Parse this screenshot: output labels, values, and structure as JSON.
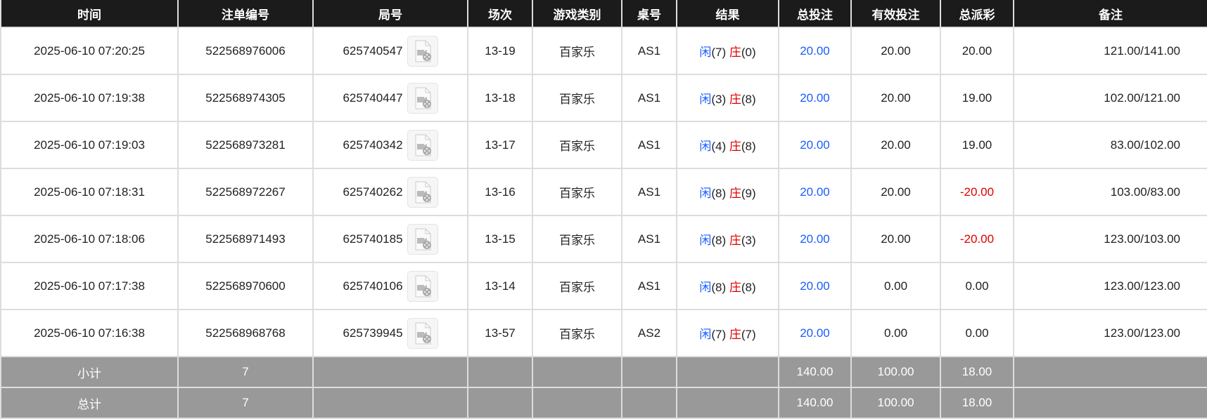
{
  "headers": [
    "时间",
    "注单编号",
    "局号",
    "场次",
    "游戏类别",
    "桌号",
    "结果",
    "总投注",
    "有效投注",
    "总派彩",
    "备注"
  ],
  "rows": [
    {
      "time": "2025-06-10 07:20:25",
      "bet_id": "522568976006",
      "round": "625740547",
      "shoe": "13-19",
      "game": "百家乐",
      "table": "AS1",
      "player": "闲",
      "player_pts": "(7)",
      "banker": "庄",
      "banker_pts": "(0)",
      "total_bet": "20.00",
      "valid_bet": "20.00",
      "payout": "20.00",
      "payout_negative": false,
      "remark": "121.00/141.00"
    },
    {
      "time": "2025-06-10 07:19:38",
      "bet_id": "522568974305",
      "round": "625740447",
      "shoe": "13-18",
      "game": "百家乐",
      "table": "AS1",
      "player": "闲",
      "player_pts": "(3)",
      "banker": "庄",
      "banker_pts": "(8)",
      "total_bet": "20.00",
      "valid_bet": "20.00",
      "payout": "19.00",
      "payout_negative": false,
      "remark": "102.00/121.00"
    },
    {
      "time": "2025-06-10 07:19:03",
      "bet_id": "522568973281",
      "round": "625740342",
      "shoe": "13-17",
      "game": "百家乐",
      "table": "AS1",
      "player": "闲",
      "player_pts": "(4)",
      "banker": "庄",
      "banker_pts": "(8)",
      "total_bet": "20.00",
      "valid_bet": "20.00",
      "payout": "19.00",
      "payout_negative": false,
      "remark": "83.00/102.00"
    },
    {
      "time": "2025-06-10 07:18:31",
      "bet_id": "522568972267",
      "round": "625740262",
      "shoe": "13-16",
      "game": "百家乐",
      "table": "AS1",
      "player": "闲",
      "player_pts": "(8)",
      "banker": "庄",
      "banker_pts": "(9)",
      "total_bet": "20.00",
      "valid_bet": "20.00",
      "payout": "-20.00",
      "payout_negative": true,
      "remark": "103.00/83.00"
    },
    {
      "time": "2025-06-10 07:18:06",
      "bet_id": "522568971493",
      "round": "625740185",
      "shoe": "13-15",
      "game": "百家乐",
      "table": "AS1",
      "player": "闲",
      "player_pts": "(8)",
      "banker": "庄",
      "banker_pts": "(3)",
      "total_bet": "20.00",
      "valid_bet": "20.00",
      "payout": "-20.00",
      "payout_negative": true,
      "remark": "123.00/103.00"
    },
    {
      "time": "2025-06-10 07:17:38",
      "bet_id": "522568970600",
      "round": "625740106",
      "shoe": "13-14",
      "game": "百家乐",
      "table": "AS1",
      "player": "闲",
      "player_pts": "(8)",
      "banker": "庄",
      "banker_pts": "(8)",
      "total_bet": "20.00",
      "valid_bet": "0.00",
      "payout": "0.00",
      "payout_negative": false,
      "remark": "123.00/123.00"
    },
    {
      "time": "2025-06-10 07:16:38",
      "bet_id": "522568968768",
      "round": "625739945",
      "shoe": "13-57",
      "game": "百家乐",
      "table": "AS2",
      "player": "闲",
      "player_pts": "(7)",
      "banker": "庄",
      "banker_pts": "(7)",
      "total_bet": "20.00",
      "valid_bet": "0.00",
      "payout": "0.00",
      "payout_negative": false,
      "remark": "123.00/123.00"
    }
  ],
  "footer": [
    {
      "label": "小计",
      "count": "7",
      "total_bet": "140.00",
      "valid_bet": "100.00",
      "payout": "18.00"
    },
    {
      "label": "总计",
      "count": "7",
      "total_bet": "140.00",
      "valid_bet": "100.00",
      "payout": "18.00"
    }
  ],
  "colors": {
    "header_bg": "#1b1b1b",
    "player": "#1a5cff",
    "banker": "#e00000",
    "footer_bg": "#999999"
  },
  "icons": {
    "replay": "video-file-icon"
  }
}
